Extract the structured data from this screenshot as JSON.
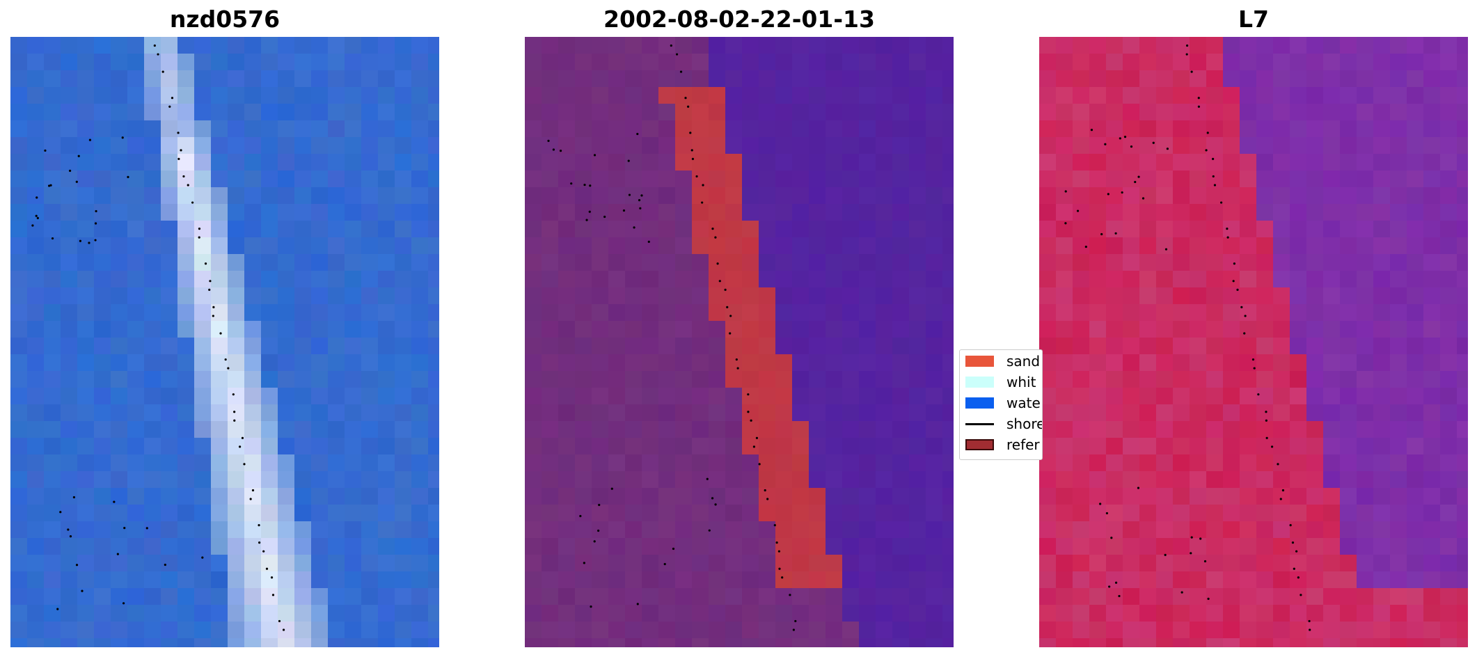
{
  "panels": [
    {
      "title": "nzd0576"
    },
    {
      "title": "2002-08-02-22-01-13"
    },
    {
      "title": "L7"
    }
  ],
  "legend": {
    "items": [
      {
        "label": "sand",
        "color": "#e8553a",
        "kind": "patch"
      },
      {
        "label": "whit",
        "color": "#cbfffb",
        "kind": "patch"
      },
      {
        "label": "wate",
        "color": "#0a5fef",
        "kind": "patch"
      },
      {
        "label": "shore",
        "color": "#000000",
        "kind": "line"
      },
      {
        "label": "refer",
        "color": "#a12d32",
        "kind": "patch-edged"
      }
    ]
  },
  "colors": {
    "rgb_water": "#2f6ad3",
    "rgb_beach": "#e8eefa",
    "class_land": "#6f2b7c",
    "class_water": "#5523a0",
    "class_sand": "#c03846",
    "index_land": "#cc2055",
    "index_water": "#7a2aa8",
    "shoreline_points": "#000000"
  }
}
